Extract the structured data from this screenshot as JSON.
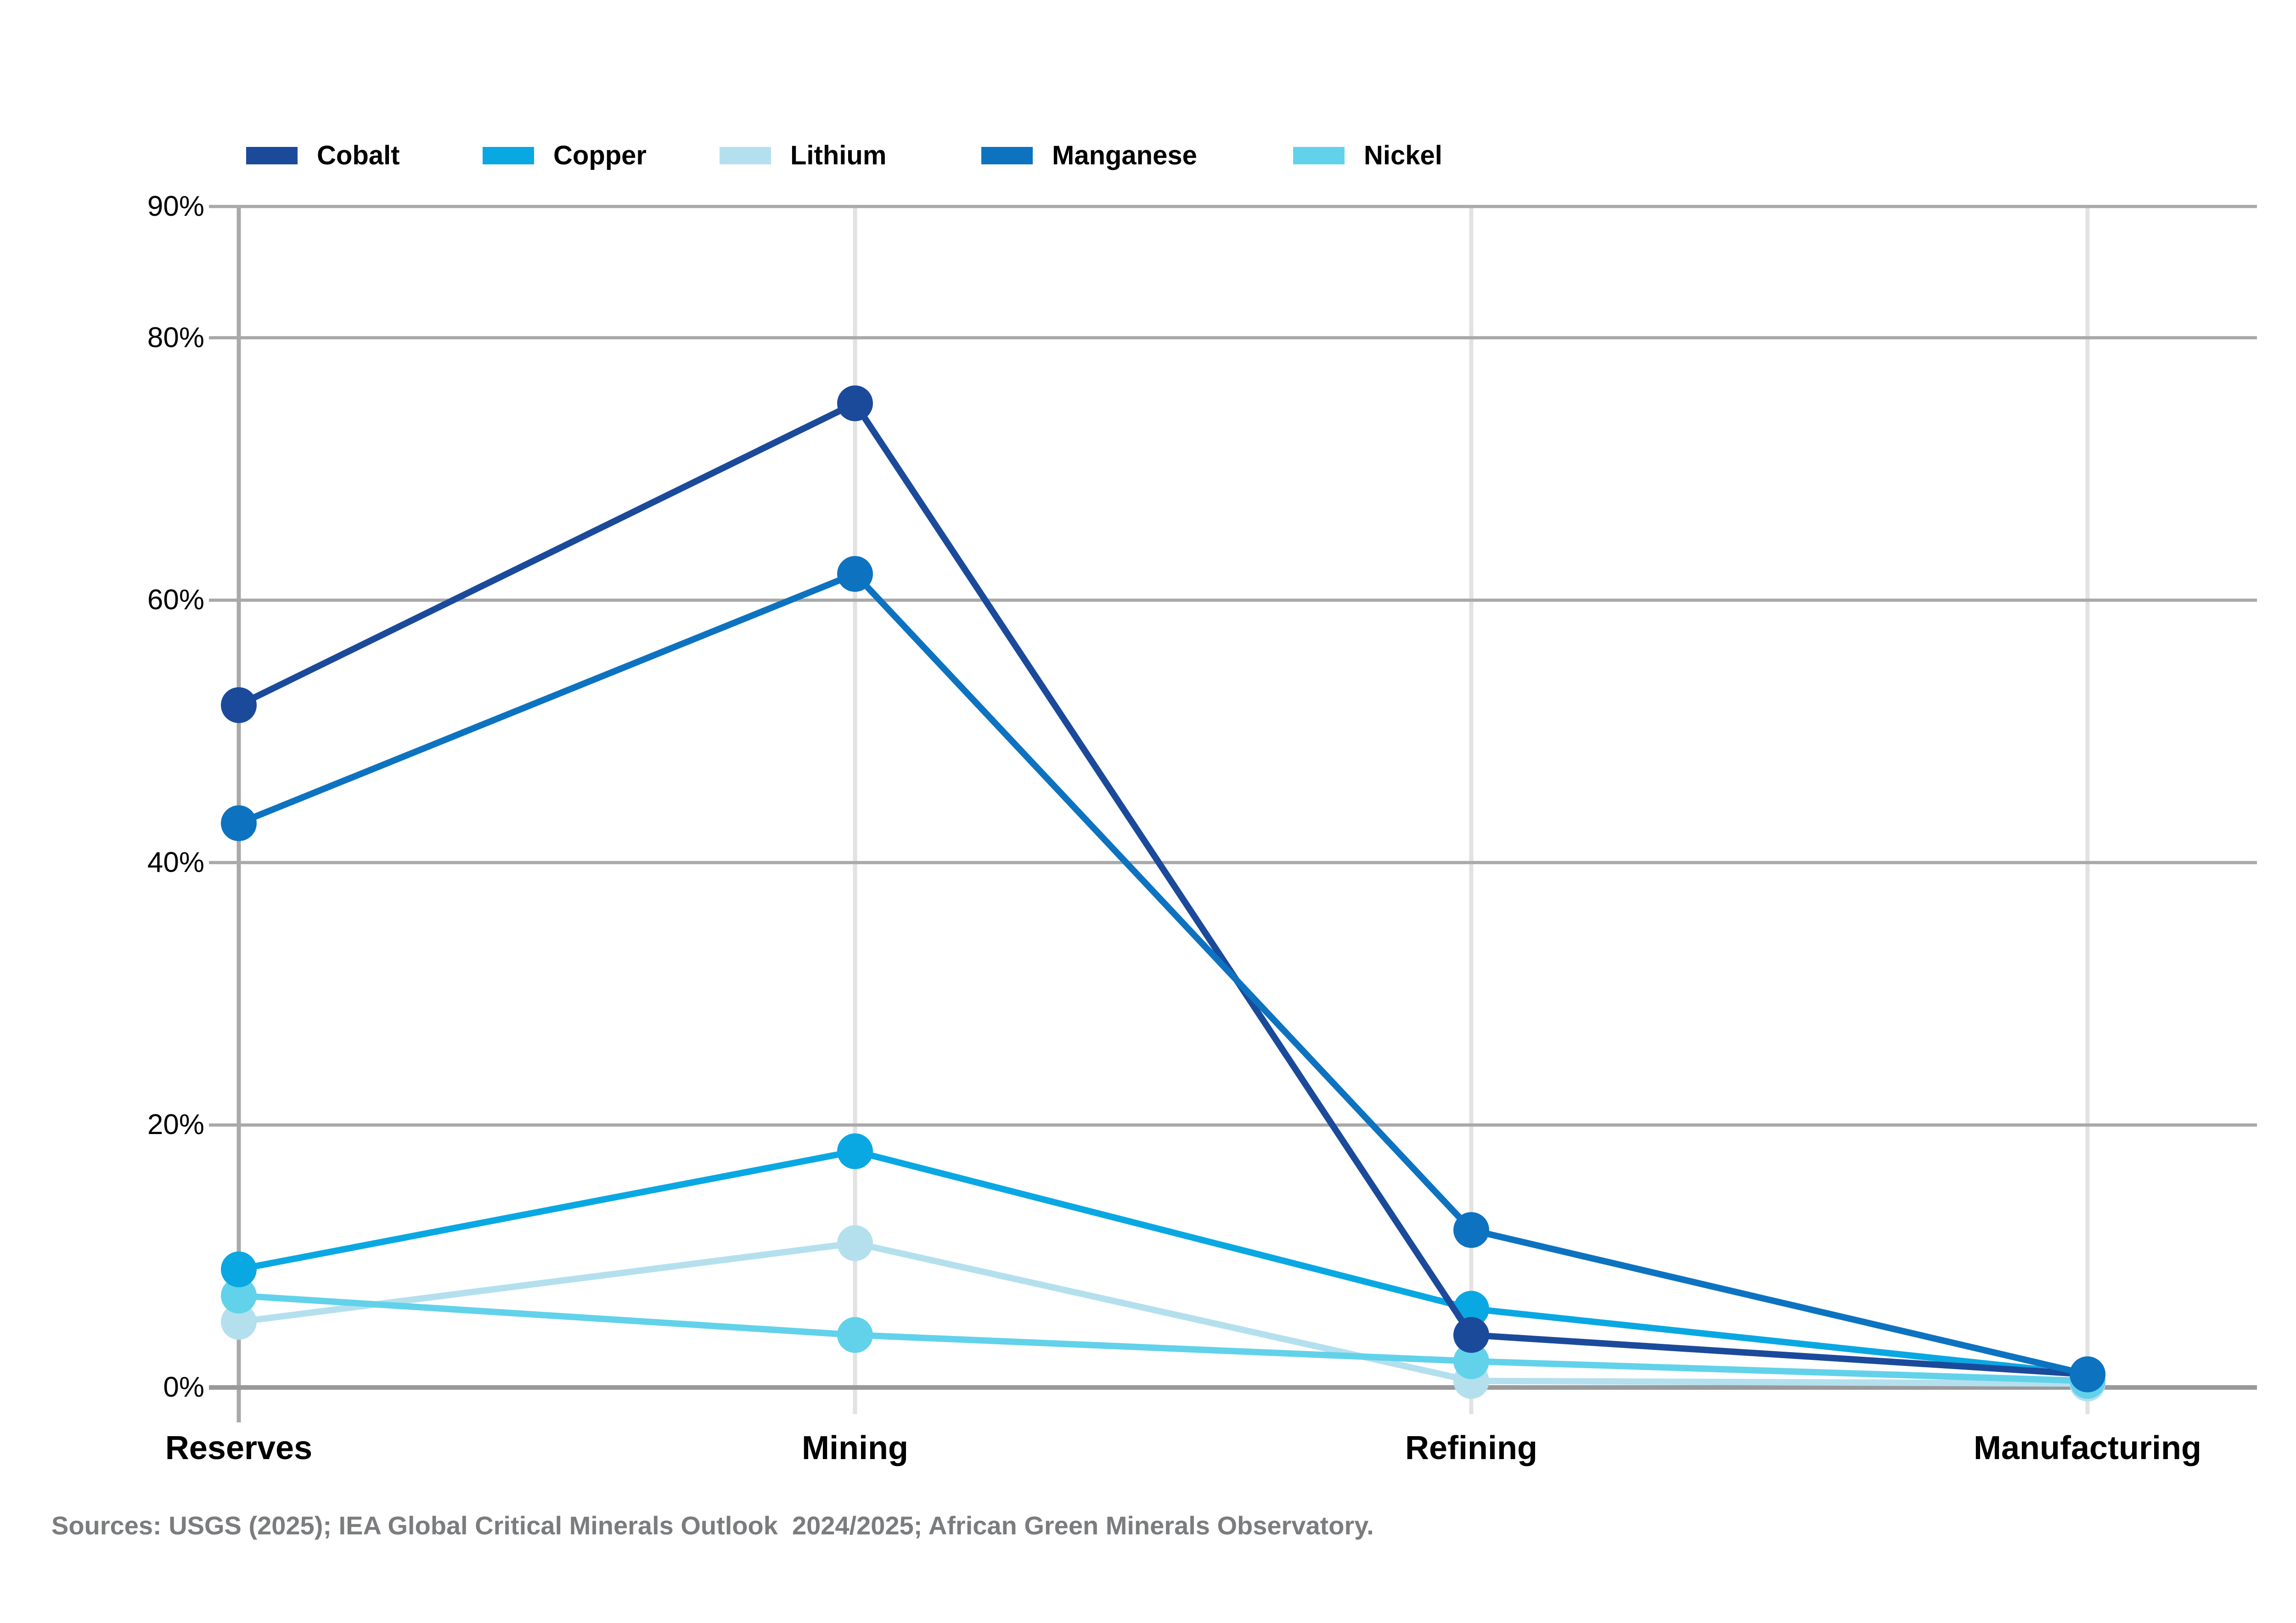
{
  "chart_data": {
    "type": "line",
    "categories": [
      "Reserves",
      "Mining",
      "Refining",
      "Manufacturing"
    ],
    "series": [
      {
        "name": "Cobalt",
        "color": "#1b4a9b",
        "values": [
          52,
          75,
          4,
          1
        ]
      },
      {
        "name": "Copper",
        "color": "#0aa8e3",
        "values": [
          9,
          18,
          6,
          1
        ]
      },
      {
        "name": "Lithium",
        "color": "#b4e0ee",
        "values": [
          5,
          11,
          0.5,
          0.3
        ]
      },
      {
        "name": "Manganese",
        "color": "#0d73c0",
        "values": [
          43,
          62,
          12,
          1
        ]
      },
      {
        "name": "Nickel",
        "color": "#62d2ea",
        "values": [
          7,
          4,
          2,
          0.5
        ]
      }
    ],
    "y_ticks": [
      {
        "label": "90%",
        "value": 90
      },
      {
        "label": "80%",
        "value": 80
      },
      {
        "label": "60%",
        "value": 60
      },
      {
        "label": "40%",
        "value": 40
      },
      {
        "label": "20%",
        "value": 20
      },
      {
        "label": "0%",
        "value": 0
      }
    ],
    "ylim": [
      0,
      90
    ],
    "title": "",
    "xlabel": "",
    "ylabel": "",
    "grid": {
      "horizontal": true,
      "vertical": true
    },
    "legend_position": "top"
  },
  "colors": {
    "gridline": "#a9a9a9",
    "gridline_light": "#e2e2e2",
    "axis": "#999999",
    "text": "#000000",
    "source_text": "#7b7c7e"
  },
  "source": {
    "text": "Sources: USGS (2025); IEA Global Critical Minerals Outlook  2024/2025; African Green Minerals Observatory."
  }
}
